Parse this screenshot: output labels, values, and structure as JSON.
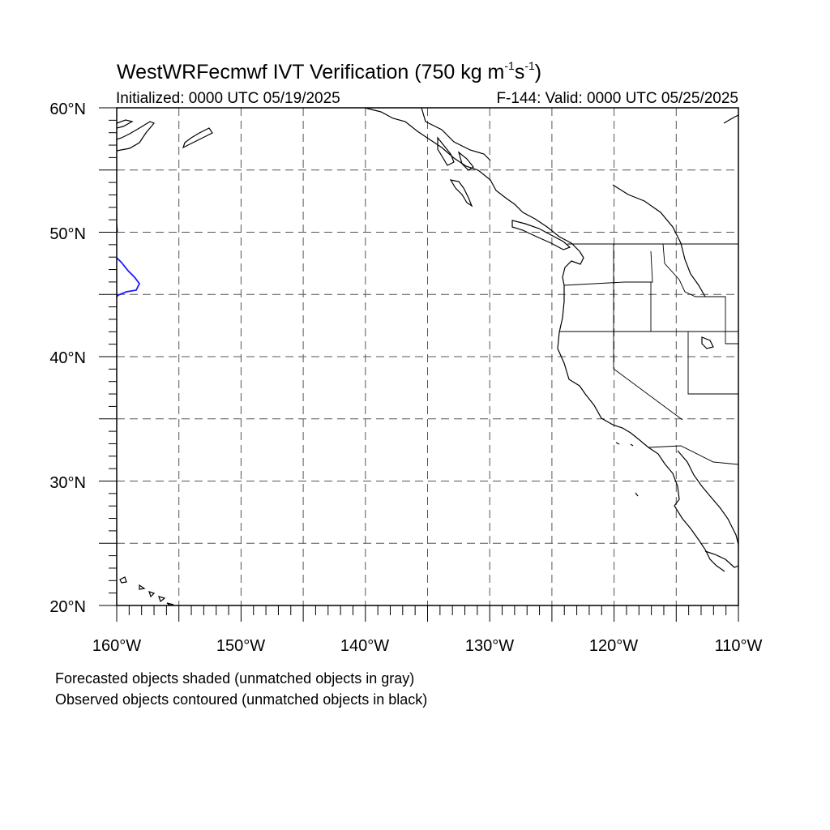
{
  "title": {
    "main": "WestWRFecmwf IVT Verification (750 kg m",
    "sup1": "-1",
    "mid": "s",
    "sup2": "-1",
    "end": ")"
  },
  "initialized": "Initialized: 0000 UTC 05/19/2025",
  "valid": "F-144: Valid: 0000 UTC 05/25/2025",
  "lat_labels": [
    "60°N",
    "50°N",
    "40°N",
    "30°N",
    "20°N"
  ],
  "lon_labels": [
    "160°W",
    "150°W",
    "140°W",
    "130°W",
    "120°W",
    "110°W"
  ],
  "notes": {
    "forecast": "Forecasted objects shaded (unmatched objects in gray)",
    "observed": "Observed objects contoured (unmatched objects in black)"
  },
  "map_data": {
    "lon_range": [
      -160,
      -110
    ],
    "lat_range": [
      20,
      60
    ],
    "grid_spacing_deg": 5,
    "observed_contour_color": "#1a1aff",
    "coastline_color": "#000000"
  }
}
